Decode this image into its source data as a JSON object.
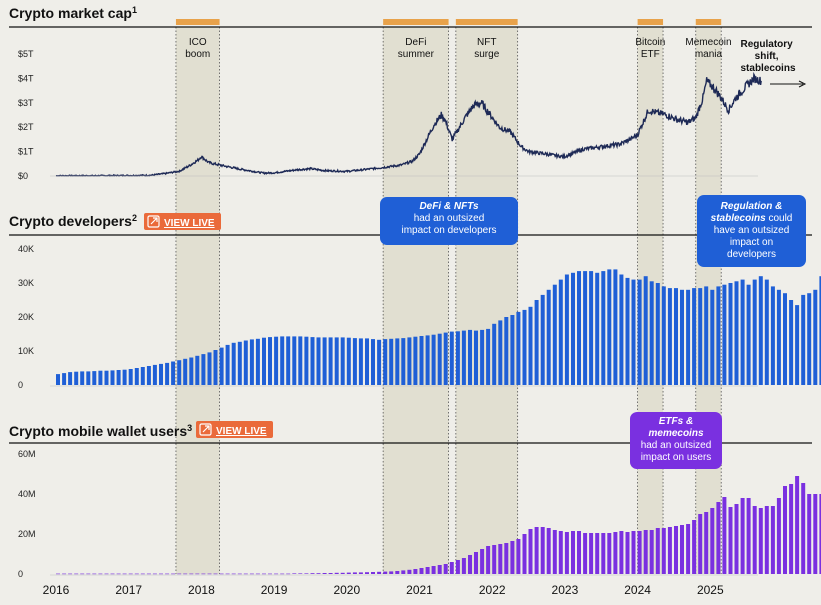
{
  "colors": {
    "background": "#efeee9",
    "band": "#dcd9c8",
    "band_marker": "#e8a24a",
    "market_line": "#1e2a56",
    "developers_bar": "#1f5fd6",
    "wallet_bar": "#7a30e0",
    "view_live": "#ea6a3a"
  },
  "panels": {
    "market": {
      "title": "Crypto market cap",
      "sup": "1"
    },
    "developers": {
      "title": "Crypto developers",
      "sup": "2",
      "view_live": "VIEW LIVE"
    },
    "wallets": {
      "title": "Crypto mobile wallet users",
      "sup": "3",
      "view_live": "VIEW LIVE"
    }
  },
  "end_label": [
    "Regulatory",
    "shift,",
    "stablecoins"
  ],
  "callouts": {
    "defi_nfts": {
      "bold": "DeFi & NFTs",
      "rest": [
        "had an outsized",
        "impact on developers"
      ]
    },
    "regulation": {
      "bold": "Regulation &",
      "bold2": "stablecoins",
      "rest_inline": "could",
      "rest": [
        "have an outsized",
        "impact on",
        "developers"
      ]
    },
    "etfs": {
      "bold": "ETFs &",
      "bold2": "memecoins",
      "rest": [
        "had an outsized",
        "impact on users"
      ]
    }
  },
  "chart_data": [
    {
      "type": "line",
      "title": "Crypto market cap",
      "y_ticks": [
        "$0",
        "$1T",
        "$2T",
        "$3T",
        "$4T",
        "$5T"
      ],
      "ylim": [
        0,
        5
      ],
      "unit": "T USD",
      "x_ticks": [
        "2016",
        "2017",
        "2018",
        "2019",
        "2020",
        "2021",
        "2022",
        "2023",
        "2024",
        "2025"
      ],
      "xlim": [
        2016.0,
        2025.75
      ],
      "events": [
        {
          "label": [
            "ICO",
            "boom"
          ],
          "start": 2017.65,
          "end": 2018.25
        },
        {
          "label": [
            "DeFi",
            "summer"
          ],
          "start": 2020.5,
          "end": 2021.4
        },
        {
          "label": [
            "NFT",
            "surge"
          ],
          "start": 2021.5,
          "end": 2022.35
        },
        {
          "label": [
            "Bitcoin",
            "ETF"
          ],
          "start": 2024.0,
          "end": 2024.35
        },
        {
          "label": [
            "Memecoin",
            "mania"
          ],
          "start": 2024.8,
          "end": 2025.15
        }
      ],
      "x": [
        2016.0,
        2016.5,
        2017.0,
        2017.3,
        2017.5,
        2017.7,
        2017.85,
        2017.95,
        2018.0,
        2018.1,
        2018.25,
        2018.5,
        2018.85,
        2019.0,
        2019.3,
        2019.5,
        2019.7,
        2019.9,
        2020.0,
        2020.2,
        2020.5,
        2020.75,
        2020.9,
        2021.0,
        2021.1,
        2021.2,
        2021.3,
        2021.35,
        2021.45,
        2021.55,
        2021.65,
        2021.75,
        2021.85,
        2021.95,
        2022.0,
        2022.1,
        2022.25,
        2022.4,
        2022.5,
        2022.75,
        2022.9,
        2023.0,
        2023.25,
        2023.5,
        2023.75,
        2023.9,
        2024.0,
        2024.15,
        2024.25,
        2024.4,
        2024.55,
        2024.7,
        2024.8,
        2024.9,
        2024.95,
        2025.05,
        2025.15,
        2025.25,
        2025.35,
        2025.5,
        2025.6,
        2025.7
      ],
      "values": [
        0.01,
        0.01,
        0.02,
        0.03,
        0.1,
        0.2,
        0.45,
        0.65,
        0.8,
        0.55,
        0.45,
        0.3,
        0.12,
        0.13,
        0.25,
        0.3,
        0.22,
        0.2,
        0.19,
        0.25,
        0.35,
        0.45,
        0.6,
        0.9,
        1.5,
        2.1,
        2.5,
        2.3,
        1.5,
        2.0,
        2.5,
        2.9,
        3.0,
        2.6,
        2.4,
        2.0,
        1.8,
        1.2,
        1.0,
        0.9,
        0.82,
        0.8,
        1.1,
        1.2,
        1.3,
        1.5,
        1.7,
        2.7,
        2.6,
        2.5,
        2.3,
        2.2,
        2.4,
        3.2,
        3.9,
        3.6,
        3.2,
        2.7,
        3.2,
        3.7,
        4.0,
        3.9
      ]
    },
    {
      "type": "bar",
      "title": "Crypto developers",
      "y_ticks": [
        "0",
        "10K",
        "20K",
        "30K",
        "40K"
      ],
      "ylim": [
        0,
        40
      ],
      "unit": "K",
      "x_start": 2016.0,
      "interval": "month",
      "values": [
        3.2,
        3.5,
        3.8,
        3.9,
        4.0,
        4.0,
        4.1,
        4.2,
        4.2,
        4.3,
        4.4,
        4.5,
        4.7,
        5.0,
        5.3,
        5.6,
        5.9,
        6.2,
        6.5,
        6.9,
        7.3,
        7.7,
        8.1,
        8.6,
        9.1,
        9.6,
        10.3,
        11.0,
        11.8,
        12.4,
        12.7,
        13.1,
        13.4,
        13.6,
        13.9,
        14.1,
        14.2,
        14.3,
        14.3,
        14.3,
        14.3,
        14.2,
        14.1,
        14.0,
        14.0,
        14.0,
        14.0,
        14.0,
        13.9,
        13.8,
        13.7,
        13.7,
        13.5,
        13.3,
        13.5,
        13.6,
        13.7,
        13.8,
        14.0,
        14.2,
        14.4,
        14.6,
        14.8,
        15.1,
        15.4,
        15.7,
        15.8,
        16.0,
        16.2,
        16.0,
        16.2,
        16.5,
        18.0,
        19.0,
        20.0,
        20.6,
        21.5,
        22.1,
        23.0,
        25.0,
        26.5,
        28.0,
        29.5,
        31.0,
        32.5,
        33.0,
        33.5,
        33.5,
        33.5,
        33.0,
        33.5,
        34.0,
        34.0,
        32.5,
        31.5,
        31.0,
        31.0,
        32.0,
        30.5,
        30.0,
        29.0,
        28.5,
        28.5,
        28.0,
        28.0,
        28.5,
        28.5,
        29.0,
        28.0,
        29.0,
        29.5,
        30.0,
        30.5,
        31.0,
        29.5,
        31.0,
        32.0,
        31.0,
        29.0,
        28.0,
        27.0,
        25.0,
        23.5,
        26.5,
        27.0,
        28.0,
        32.0,
        30.0,
        27.0,
        25.5
      ]
    },
    {
      "type": "bar",
      "title": "Crypto mobile wallet users",
      "y_ticks": [
        "0",
        "20M",
        "40M",
        "60M"
      ],
      "ylim": [
        0,
        60
      ],
      "unit": "M",
      "x_start": 2016.0,
      "interval": "month",
      "values": [
        0.2,
        0.2,
        0.2,
        0.2,
        0.2,
        0.2,
        0.2,
        0.2,
        0.2,
        0.2,
        0.2,
        0.2,
        0.2,
        0.2,
        0.2,
        0.2,
        0.2,
        0.2,
        0.2,
        0.2,
        0.2,
        0.2,
        0.2,
        0.2,
        0.2,
        0.2,
        0.2,
        0.2,
        0.2,
        0.2,
        0.2,
        0.2,
        0.2,
        0.2,
        0.2,
        0.2,
        0.2,
        0.2,
        0.2,
        0.3,
        0.3,
        0.3,
        0.4,
        0.4,
        0.5,
        0.5,
        0.6,
        0.6,
        0.7,
        0.8,
        0.8,
        0.9,
        1.0,
        1.1,
        1.2,
        1.3,
        1.5,
        1.8,
        2.1,
        2.5,
        3.0,
        3.5,
        4.0,
        4.5,
        5.0,
        6.0,
        7.0,
        8.0,
        9.5,
        11.0,
        12.5,
        14.0,
        14.5,
        15.0,
        15.5,
        16.5,
        17.5,
        20.0,
        22.5,
        23.5,
        23.5,
        23.0,
        22.0,
        21.5,
        21.0,
        21.5,
        21.5,
        20.5,
        20.5,
        20.5,
        20.5,
        20.5,
        21.0,
        21.5,
        21.0,
        21.5,
        21.5,
        22.0,
        22.0,
        23.0,
        23.0,
        23.5,
        24.0,
        24.5,
        25.0,
        27.0,
        30.0,
        31.0,
        33.0,
        36.0,
        38.5,
        33.5,
        35.0,
        38.0,
        38.0,
        34.0,
        33.0,
        34.0,
        34.0,
        38.0,
        44.0,
        45.0,
        49.0,
        45.5,
        40.0,
        40.0,
        40.0,
        41.0,
        41.0,
        40.5,
        40.5
      ]
    }
  ]
}
